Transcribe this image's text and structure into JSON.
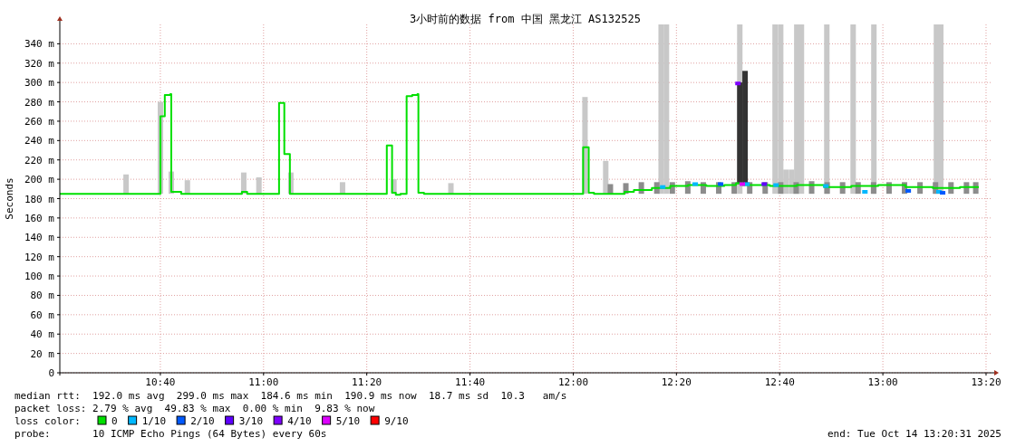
{
  "chart_data": {
    "type": "step",
    "title": "3小时前的数据 from 中国 黑龙江 AS132525",
    "ylabel": "Seconds",
    "legend_title": "loss color:",
    "legend": "bottom",
    "grid": true,
    "xlim": [
      10.342,
      13.348
    ],
    "ylim": [
      0,
      360
    ],
    "xticks": [
      {
        "value": 10.6667,
        "label": "10:40"
      },
      {
        "value": 11.0,
        "label": "11:00"
      },
      {
        "value": 11.3333,
        "label": "11:20"
      },
      {
        "value": 11.6667,
        "label": "11:40"
      },
      {
        "value": 12.0,
        "label": "12:00"
      },
      {
        "value": 12.3333,
        "label": "12:20"
      },
      {
        "value": 12.6667,
        "label": "12:40"
      },
      {
        "value": 13.0,
        "label": "13:00"
      },
      {
        "value": 13.3333,
        "label": "13:20"
      }
    ],
    "yticks": [
      0,
      {
        "value": 20,
        "label": "20 m"
      },
      {
        "value": 40,
        "label": "40 m"
      },
      {
        "value": 60,
        "label": "60 m"
      },
      {
        "value": 80,
        "label": "80 m"
      },
      {
        "value": 100,
        "label": "100 m"
      },
      {
        "value": 120,
        "label": "120 m"
      },
      {
        "value": 140,
        "label": "140 m"
      },
      {
        "value": 160,
        "label": "160 m"
      },
      {
        "value": 180,
        "label": "180 m"
      },
      {
        "value": 200,
        "label": "200 m"
      },
      {
        "value": 220,
        "label": "220 m"
      },
      {
        "value": 240,
        "label": "240 m"
      },
      {
        "value": 260,
        "label": "260 m"
      },
      {
        "value": 280,
        "label": "280 m"
      },
      {
        "value": 300,
        "label": "300 m"
      },
      {
        "value": 320,
        "label": "320 m"
      },
      {
        "value": 340,
        "label": "340 m"
      }
    ],
    "series": [
      {
        "type": "bar",
        "color": "#c8c8c8",
        "x": [
          10.556,
          10.667,
          10.702,
          10.754,
          10.936,
          10.985,
          11.088,
          11.255,
          11.421,
          11.605,
          12.038,
          12.105,
          12.284,
          12.301,
          12.538,
          12.652,
          12.67,
          12.687,
          12.705,
          12.722,
          12.737,
          12.819,
          12.904,
          12.971,
          13.173,
          13.187
        ],
        "base": [
          185,
          185,
          185,
          185,
          185,
          185,
          185,
          185,
          185,
          185,
          185,
          185,
          185,
          185,
          185,
          185,
          185,
          185,
          185,
          185,
          185,
          185,
          185,
          185,
          185,
          185
        ],
        "values": [
          20,
          95,
          23,
          14,
          22,
          17,
          22,
          12,
          15,
          11,
          100,
          34,
          175,
          175,
          175,
          175,
          175,
          25,
          25,
          175,
          175,
          175,
          175,
          175,
          175,
          175
        ]
      },
      {
        "type": "bar",
        "color": "#8c8c8c",
        "x": [
          12.12,
          12.17,
          12.22,
          12.27,
          12.32,
          12.37,
          12.42,
          12.47,
          12.52,
          12.57,
          12.62,
          12.67,
          12.72,
          12.77,
          12.82,
          12.87,
          12.92,
          12.97,
          13.02,
          13.07,
          13.12,
          13.17,
          13.22,
          13.27,
          13.3
        ],
        "base": [
          185,
          185,
          185,
          185,
          185,
          185,
          185,
          185,
          185,
          185,
          185,
          185,
          185,
          185,
          185,
          185,
          185,
          185,
          185,
          185,
          185,
          185,
          185,
          185,
          185
        ],
        "values": [
          10,
          11,
          12,
          12,
          12,
          13,
          12,
          12,
          12,
          12,
          12,
          12,
          12,
          13,
          12,
          12,
          12,
          12,
          12,
          12,
          12,
          12,
          12,
          12,
          12
        ]
      },
      {
        "type": "bar",
        "color": "#333333",
        "x": [
          12.538,
          12.555
        ],
        "base": [
          195,
          195
        ],
        "values": [
          105,
          117
        ]
      },
      {
        "name": "0",
        "color": "#00e000",
        "x": [
          10.342,
          10.442,
          10.588,
          10.664,
          10.667,
          10.681,
          10.699,
          10.702,
          10.734,
          10.927,
          10.93,
          10.944,
          10.947,
          11.047,
          11.05,
          11.064,
          11.067,
          11.082,
          11.085,
          11.395,
          11.398,
          11.412,
          11.415,
          11.427,
          11.442,
          11.459,
          11.462,
          11.48,
          11.497,
          11.5,
          11.518,
          11.757,
          12.029,
          12.032,
          12.047,
          12.05,
          12.067,
          12.137,
          12.166,
          12.196,
          12.254,
          12.313,
          12.371,
          12.43,
          12.488,
          12.526,
          12.547,
          12.635,
          12.722,
          12.81,
          12.898,
          12.985,
          13.073,
          13.161,
          13.249,
          13.31
        ],
        "values": [
          185,
          185,
          185,
          185,
          265,
          287,
          288,
          187,
          185,
          185,
          187,
          187,
          185,
          185,
          279,
          279,
          226,
          226,
          185,
          185,
          235,
          235,
          186,
          184,
          185,
          185,
          286,
          287,
          288,
          186,
          185,
          185,
          185,
          233,
          233,
          186,
          185,
          185,
          187,
          189,
          191,
          193,
          194,
          193,
          194,
          196,
          194,
          193,
          194,
          192,
          193,
          194,
          192,
          191,
          192,
          192
        ]
      },
      {
        "name": "1/10",
        "type": "scatter",
        "color": "#00b8ff",
        "x": [
          12.289,
          12.394,
          12.561,
          12.655,
          12.816,
          12.942,
          13.181
        ],
        "values": [
          192,
          195,
          195,
          194,
          193,
          187,
          187
        ]
      },
      {
        "name": "2/10",
        "type": "scatter",
        "color": "#0059ff",
        "x": [
          12.476,
          13.082,
          13.193
        ],
        "values": [
          195,
          188,
          186
        ]
      },
      {
        "name": "3/10",
        "type": "scatter",
        "color": "#5e00ff",
        "x": [
          12.617
        ],
        "values": [
          195
        ]
      },
      {
        "name": "4/10",
        "type": "scatter",
        "color": "#7e00ff",
        "x": [
          12.532
        ],
        "values": [
          299
        ]
      },
      {
        "name": "5/10",
        "type": "scatter",
        "color": "#dd00ff",
        "x": [
          12.546
        ],
        "values": [
          195
        ]
      },
      {
        "name": "9/10",
        "type": "scatter",
        "color": "#ff0000"
      }
    ],
    "annotations": [
      "median rtt:  192.0 ms avg  299.0 ms max  184.6 ms min  190.9 ms now  18.7 ms sd  10.3   am/s",
      "packet loss: 2.79 % avg  49.83 % max  0.00 % min  9.83 % now",
      "probe:       10 ICMP Echo Pings (64 Bytes) every 60s",
      "end: Tue Oct 14 13:20:31 2025"
    ]
  }
}
